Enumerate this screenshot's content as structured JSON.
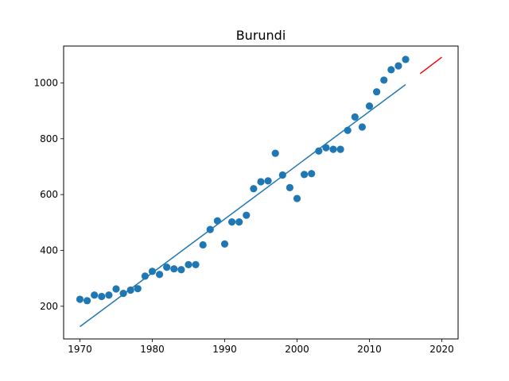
{
  "chart_data": {
    "type": "scatter",
    "title": "Burundi",
    "xlabel": "",
    "ylabel": "",
    "xlim": [
      1967.75,
      2022.25
    ],
    "ylim": [
      83,
      1132
    ],
    "xticks": [
      1970,
      1980,
      1990,
      2000,
      2010,
      2020
    ],
    "yticks": [
      200,
      400,
      600,
      800,
      1000
    ],
    "grid": false,
    "colors": {
      "points": "#1f77b4",
      "fit": "#1f77b4",
      "forecast": "#ff0000"
    },
    "series": [
      {
        "kind": "scatter",
        "x": [
          1970,
          1971,
          1972,
          1973,
          1974,
          1975,
          1976,
          1977,
          1978,
          1979,
          1980,
          1981,
          1982,
          1983,
          1984,
          1985,
          1986,
          1987,
          1988,
          1989,
          1990,
          1991,
          1992,
          1993,
          1994,
          1995,
          1996,
          1997,
          1998,
          1999,
          2000,
          2001,
          2002,
          2003,
          2004,
          2005,
          2006,
          2007,
          2008,
          2009,
          2010,
          2011,
          2012,
          2013,
          2014,
          2015
        ],
        "y": [
          225,
          220,
          240,
          235,
          240,
          262,
          246,
          258,
          263,
          308,
          325,
          314,
          340,
          334,
          331,
          349,
          349,
          420,
          475,
          506,
          423,
          502,
          502,
          526,
          621,
          646,
          649,
          748,
          670,
          625,
          586,
          672,
          675,
          756,
          768,
          762,
          762,
          830,
          878,
          842,
          917,
          968,
          1010,
          1047,
          1061,
          1084
        ]
      },
      {
        "kind": "line",
        "x": [
          1970,
          2015
        ],
        "y": [
          127,
          994
        ]
      },
      {
        "kind": "line",
        "x": [
          2017,
          2020
        ],
        "y": [
          1033,
          1092
        ]
      }
    ]
  }
}
